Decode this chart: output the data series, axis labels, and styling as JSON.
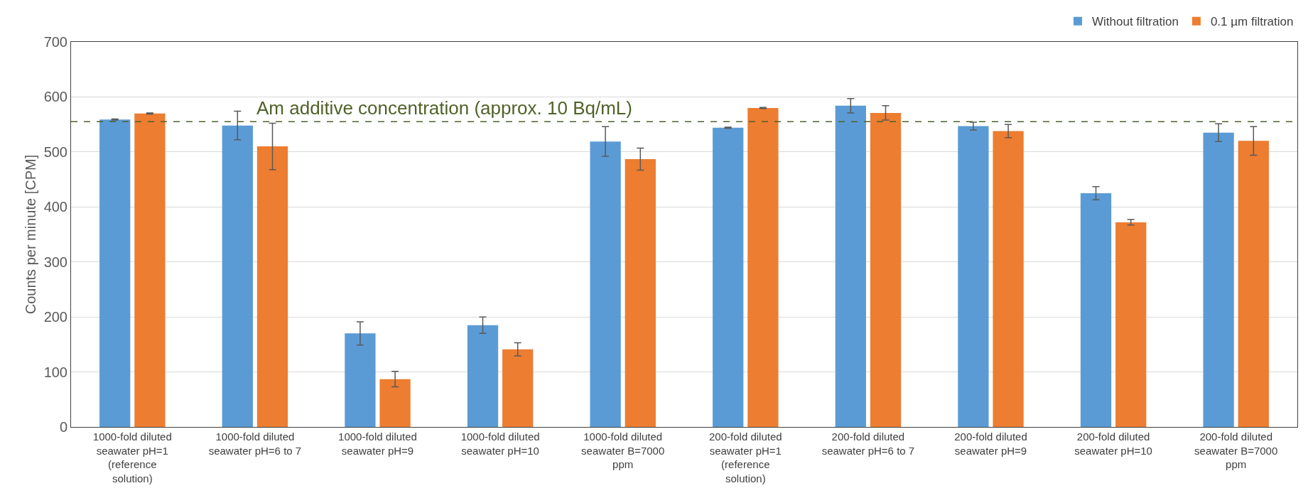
{
  "chart_data": {
    "type": "bar",
    "ylabel": "Counts per minute [CPM]",
    "categories": [
      "1000-fold diluted seawater pH=1 (reference solution)",
      "1000-fold diluted seawater pH=6 to 7",
      "1000-fold diluted seawater pH=9",
      "1000-fold diluted seawater pH=10",
      "1000-fold diluted seawater B=7000 ppm",
      "200-fold diluted seawater pH=1 (reference solution)",
      "200-fold diluted seawater pH=6 to 7",
      "200-fold diluted seawater pH=9",
      "200-fold diluted seawater pH=10",
      "200-fold diluted seawater B=7000 ppm"
    ],
    "series": [
      {
        "name": "Without filtration",
        "color": "#5b9bd5",
        "values": [
          559,
          548,
          170,
          185,
          519,
          544,
          584,
          547,
          425,
          535
        ],
        "errors": [
          1,
          26,
          21,
          15,
          27,
          1,
          13,
          7,
          12,
          16
        ]
      },
      {
        "name": "0.1 µm filtration",
        "color": "#ed7d31",
        "values": [
          570,
          510,
          87,
          141,
          487,
          580,
          571,
          538,
          372,
          520
        ],
        "errors": [
          1,
          42,
          14,
          12,
          20,
          1,
          13,
          12,
          5,
          26
        ]
      }
    ],
    "ylim": [
      0,
      700
    ],
    "yticks": [
      0,
      100,
      200,
      300,
      400,
      500,
      600,
      700
    ],
    "grid": "y",
    "legend": "top right",
    "ref_lines": [
      {
        "axis": "y",
        "value": 555,
        "label": "Am additive concentration (approx. 10 Bq/mL)",
        "color": "#4f6228",
        "line_style": "dashed"
      }
    ]
  }
}
